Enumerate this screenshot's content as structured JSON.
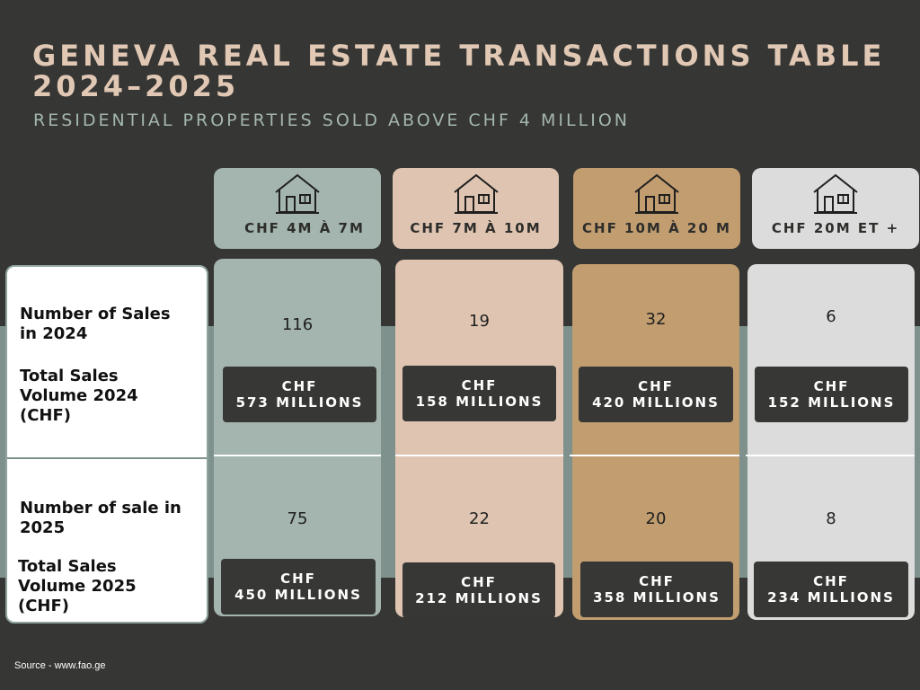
{
  "title": "GENEVA REAL ESTATE TRANSACTIONS TABLE 2024–2025",
  "subtitle": "RESIDENTIAL PROPERTIES SOLD ABOVE CHF 4 MILLION",
  "row_labels": {
    "sales_2024": "Number of Sales in 2024",
    "volume_2024": "Total Sales Volume 2024 (CHF)",
    "sales_2025": "Number of sale in 2025",
    "volume_2025": "Total Sales Volume 2025 (CHF)"
  },
  "columns": [
    {
      "label": "CHF 4M À 7M",
      "color": "#a3b5ae",
      "sales_2024": "116",
      "volume_2024": {
        "line1": "CHF",
        "line2": "573 MILLIONS"
      },
      "sales_2025": "75",
      "volume_2025": {
        "line1": "CHF",
        "line2": "450 MILLIONS"
      }
    },
    {
      "label": "CHF 7M À 10M",
      "color": "#dfc5b1",
      "sales_2024": "19",
      "volume_2024": {
        "line1": "CHF",
        "line2": "158 MILLIONS"
      },
      "sales_2025": "22",
      "volume_2025": {
        "line1": "CHF",
        "line2": "212 MILLIONS"
      }
    },
    {
      "label": "CHF 10M À 20 M",
      "color": "#c19d6f",
      "sales_2024": "32",
      "volume_2024": {
        "line1": "CHF",
        "line2": "420 MILLIONS"
      },
      "sales_2025": "20",
      "volume_2025": {
        "line1": "CHF",
        "line2": "358 MILLIONS"
      }
    },
    {
      "label": "CHF 20M ET +",
      "color": "#dcdcdc",
      "sales_2024": "6",
      "volume_2024": {
        "line1": "CHF",
        "line2": "152 MILLIONS"
      },
      "sales_2025": "8",
      "volume_2025": {
        "line1": "CHF",
        "line2": "234 MILLIONS"
      }
    }
  ],
  "source": "Source - www.fao.ge",
  "icons": {
    "header_icon": "house-icon"
  }
}
